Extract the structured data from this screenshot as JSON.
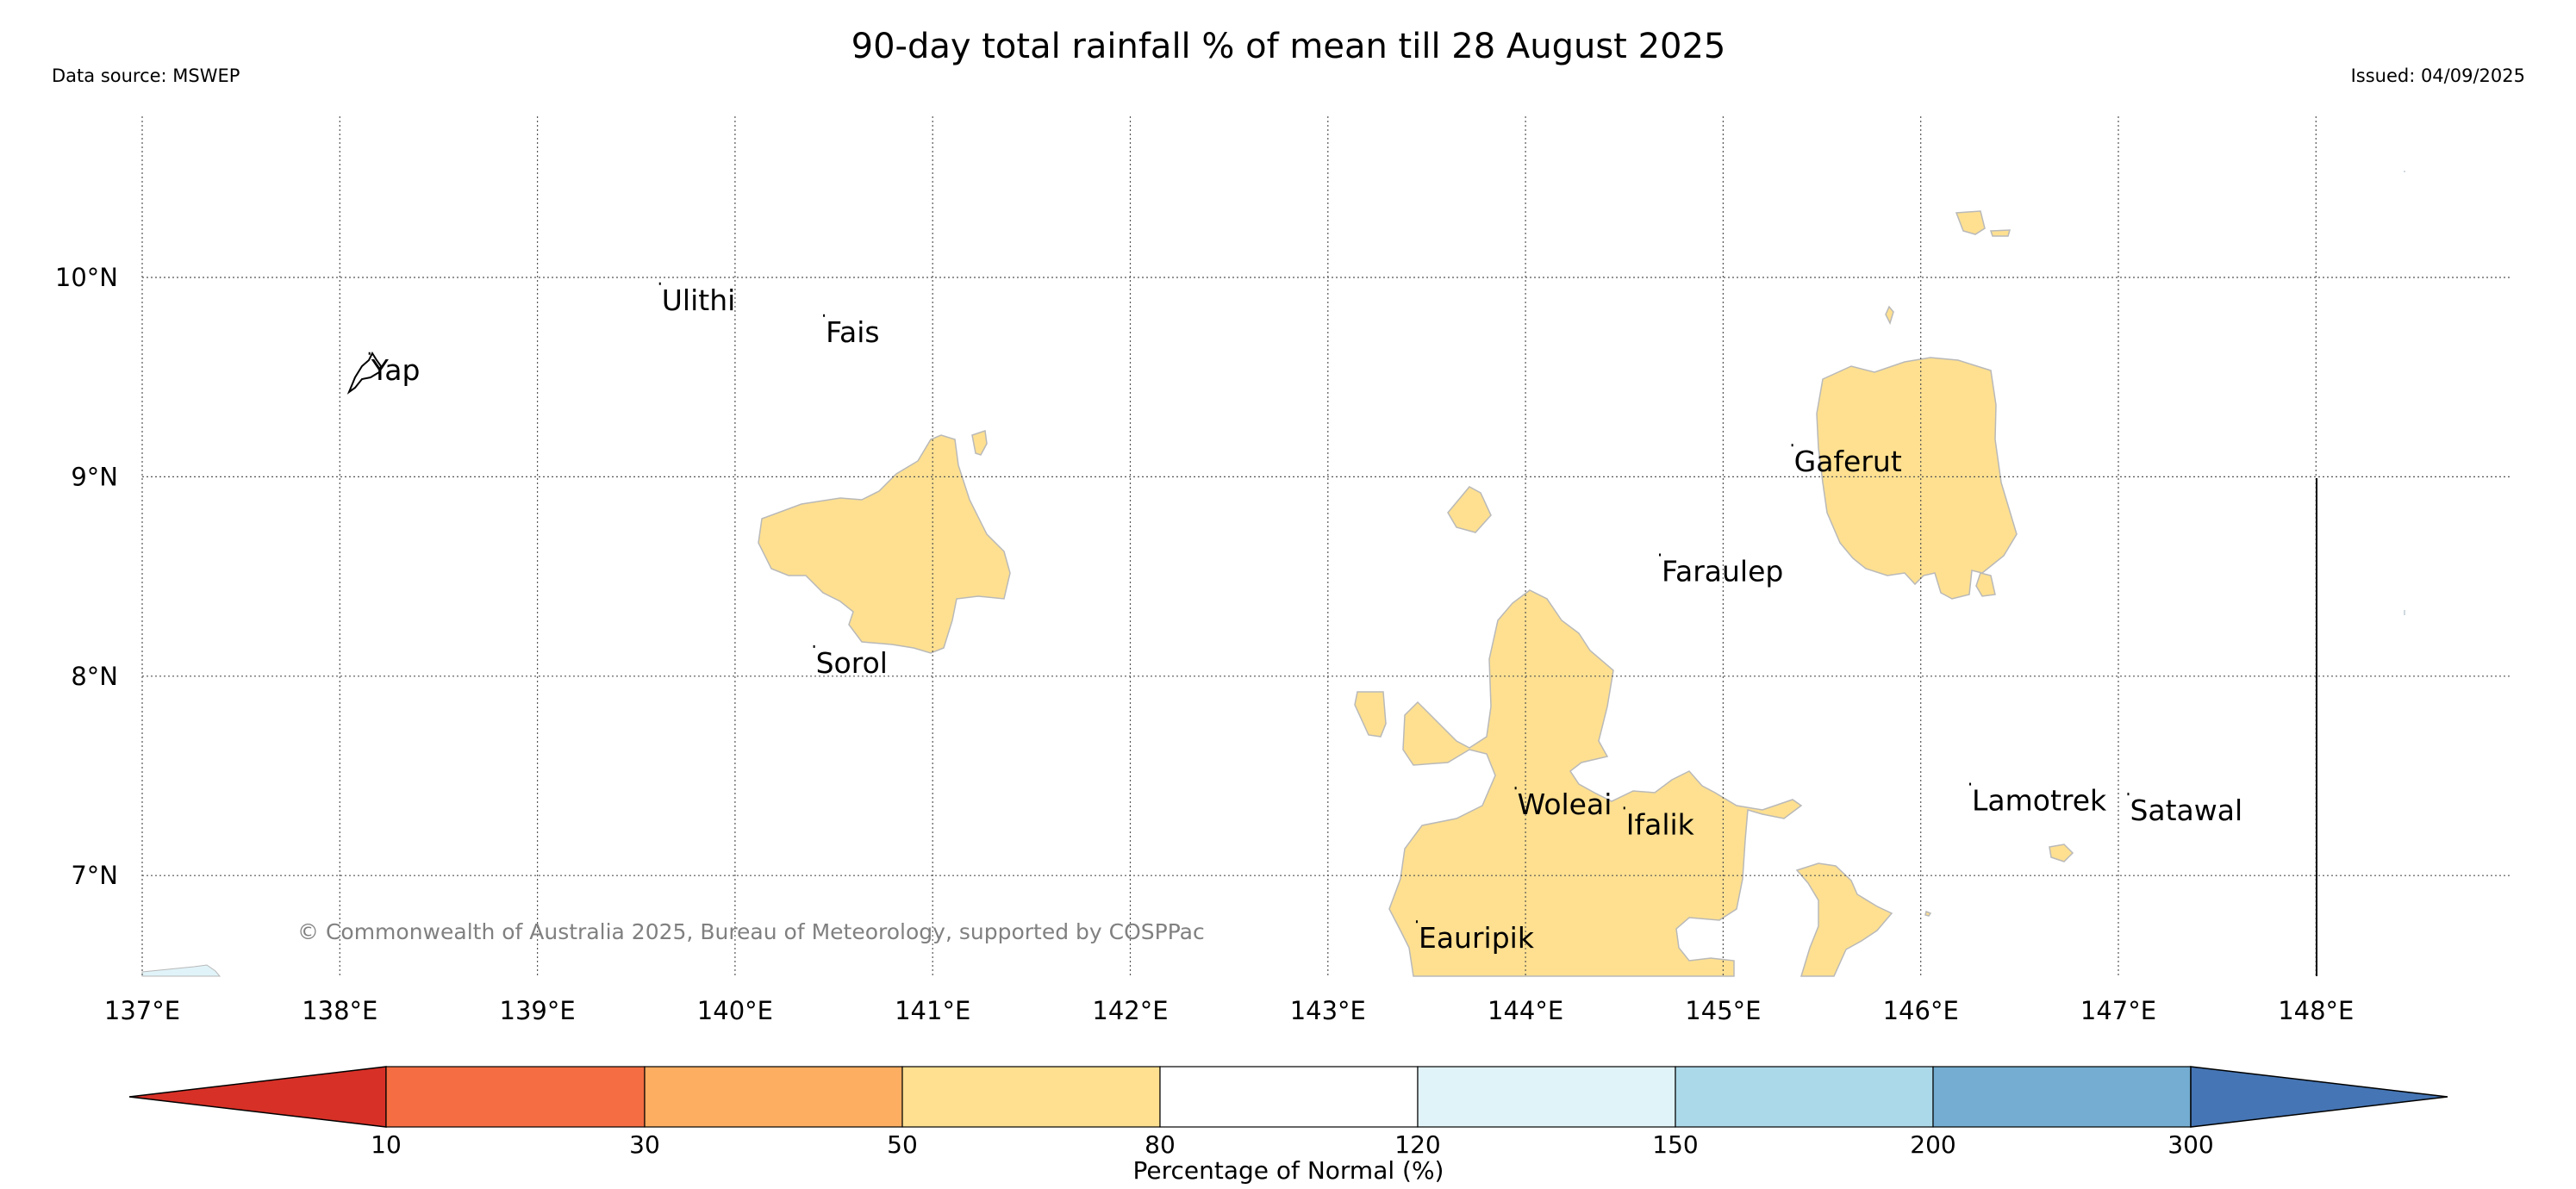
{
  "header": {
    "title": "90-day total rainfall % of mean till 28 August 2025",
    "data_source": "Data source: MSWEP",
    "issued": "Issued: 04/09/2025"
  },
  "map": {
    "lon_range": [
      137,
      148.5
    ],
    "lat_range": [
      6.55,
      10.75
    ],
    "lon_ticks": [
      "137°E",
      "138°E",
      "139°E",
      "140°E",
      "141°E",
      "142°E",
      "143°E",
      "144°E",
      "145°E",
      "146°E",
      "147°E",
      "148°E"
    ],
    "lat_ticks": [
      "7°N",
      "8°N",
      "9°N",
      "10°N"
    ],
    "islands": [
      {
        "name": "Yap",
        "lon": 138.15,
        "lat": 9.53
      },
      {
        "name": "Ulithi",
        "lon": 139.62,
        "lat": 9.88
      },
      {
        "name": "Fais",
        "lon": 140.45,
        "lat": 9.72
      },
      {
        "name": "Sorol",
        "lon": 140.4,
        "lat": 8.06
      },
      {
        "name": "Gaferut",
        "lon": 145.35,
        "lat": 9.07
      },
      {
        "name": "Faraulep",
        "lon": 144.68,
        "lat": 8.52
      },
      {
        "name": "Woleai",
        "lon": 143.95,
        "lat": 7.35
      },
      {
        "name": "Ifalik",
        "lon": 144.5,
        "lat": 7.25
      },
      {
        "name": "Lamotrek",
        "lon": 146.25,
        "lat": 7.37
      },
      {
        "name": "Satawal",
        "lon": 147.05,
        "lat": 7.32
      },
      {
        "name": "Eauripik",
        "lon": 143.45,
        "lat": 6.68
      }
    ],
    "copyright": "© Commonwealth of Australia 2025, Bureau of Meteorology, supported by COSPPac"
  },
  "colorbar": {
    "label": "Percentage of Normal (%)",
    "ticks": [
      "10",
      "30",
      "50",
      "80",
      "120",
      "150",
      "200",
      "300"
    ],
    "colors": [
      "#d73027",
      "#f46d43",
      "#fdae61",
      "#fee090",
      "#ffffff",
      "#e0f3f8",
      "#abd9e9",
      "#74add1",
      "#4575b4"
    ]
  }
}
